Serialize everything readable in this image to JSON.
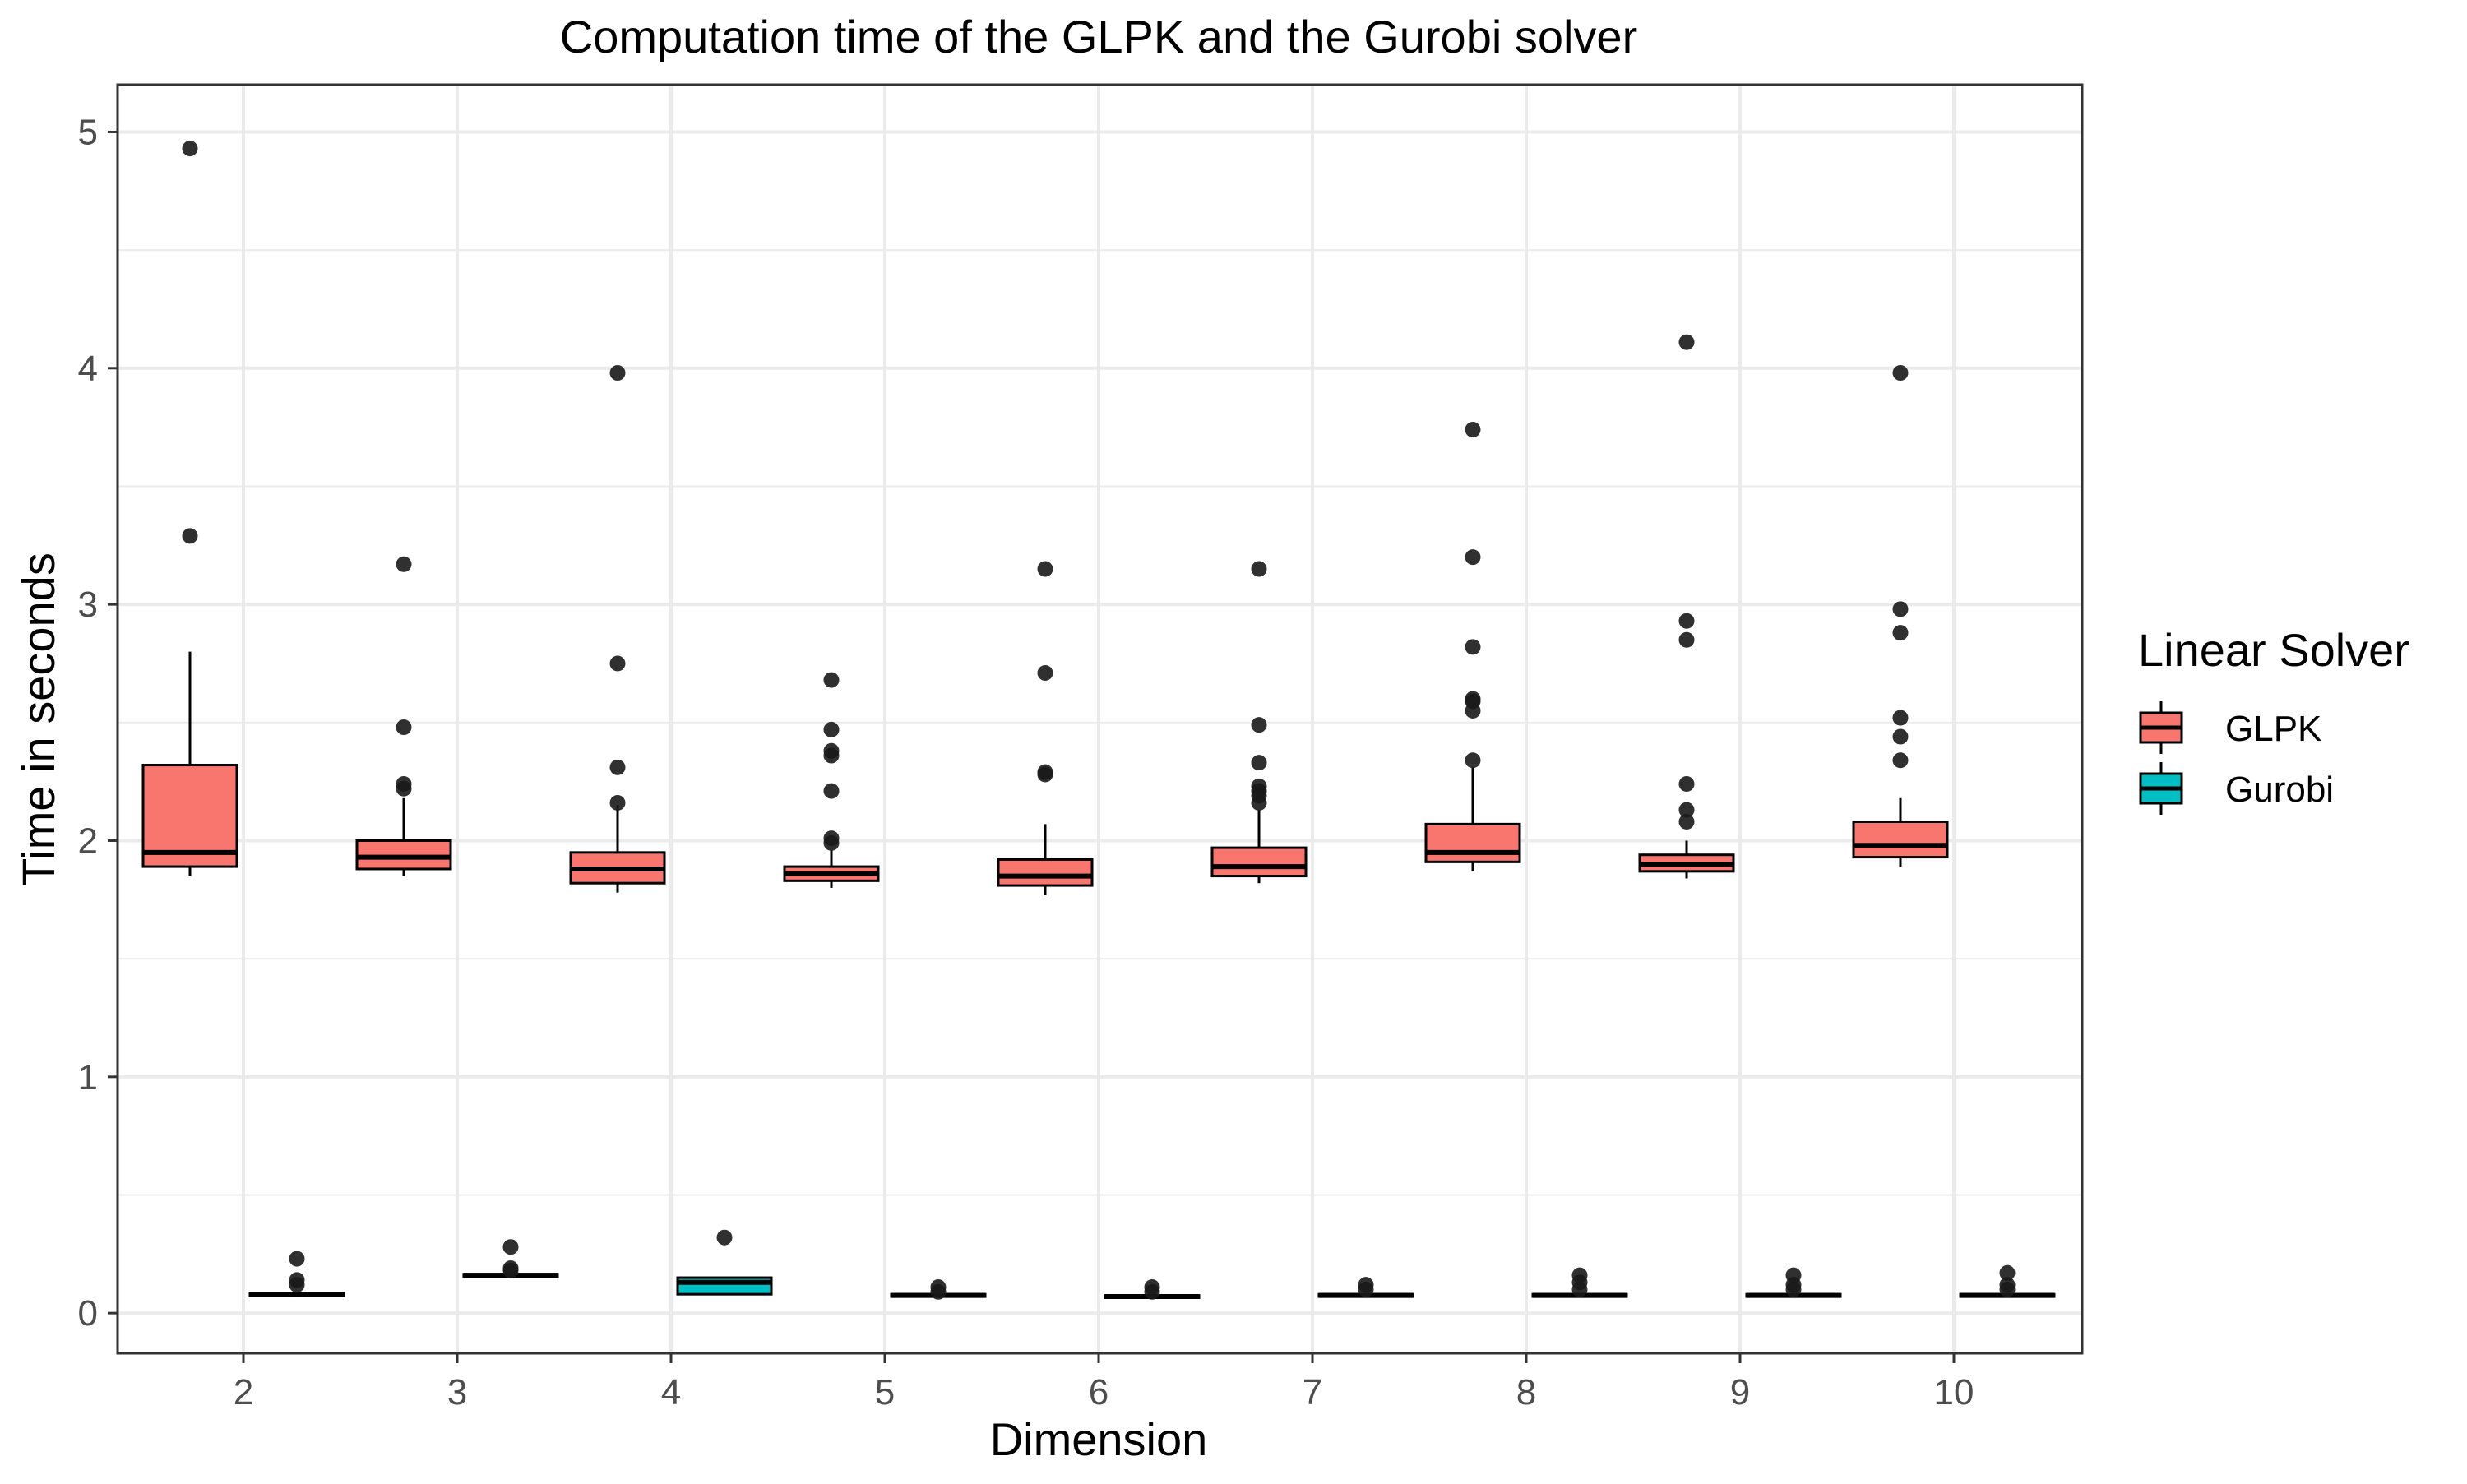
{
  "chart_data": {
    "type": "boxplot",
    "title": "Computation time of the GLPK and the Gurobi solver",
    "xlabel": "Dimension",
    "ylabel": "Time in seconds",
    "categories": [
      "2",
      "3",
      "4",
      "5",
      "6",
      "7",
      "8",
      "9",
      "10"
    ],
    "ylim": [
      -0.17,
      5.2
    ],
    "yticks": [
      0,
      1,
      2,
      3,
      4,
      5
    ],
    "grid": true,
    "legend": {
      "title": "Linear Solver",
      "position": "right",
      "entries": [
        "GLPK",
        "Gurobi"
      ]
    },
    "colors": {
      "GLPK": "#F8766D",
      "Gurobi": "#00BFC4",
      "grid": "#ebebeb",
      "outlier": "#1a1a1a"
    },
    "series": [
      {
        "name": "GLPK",
        "boxes": [
          {
            "whisker_low": 1.85,
            "q1": 1.89,
            "median": 1.95,
            "q3": 2.32,
            "whisker_high": 2.8,
            "outliers": [
              3.29,
              4.93
            ]
          },
          {
            "whisker_low": 1.85,
            "q1": 1.88,
            "median": 1.93,
            "q3": 2.0,
            "whisker_high": 2.18,
            "outliers": [
              2.22,
              2.24,
              2.48,
              3.17
            ]
          },
          {
            "whisker_low": 1.78,
            "q1": 1.82,
            "median": 1.88,
            "q3": 1.95,
            "whisker_high": 2.15,
            "outliers": [
              2.16,
              2.31,
              2.75,
              3.98
            ]
          },
          {
            "whisker_low": 1.8,
            "q1": 1.83,
            "median": 1.86,
            "q3": 1.89,
            "whisker_high": 1.96,
            "outliers": [
              1.99,
              2.01,
              2.21,
              2.36,
              2.38,
              2.47,
              2.68
            ]
          },
          {
            "whisker_low": 1.77,
            "q1": 1.81,
            "median": 1.85,
            "q3": 1.92,
            "whisker_high": 2.07,
            "outliers": [
              2.28,
              2.29,
              2.71,
              3.15
            ]
          },
          {
            "whisker_low": 1.82,
            "q1": 1.85,
            "median": 1.89,
            "q3": 1.97,
            "whisker_high": 2.13,
            "outliers": [
              2.16,
              2.19,
              2.21,
              2.23,
              2.33,
              2.49,
              3.15
            ]
          },
          {
            "whisker_low": 1.87,
            "q1": 1.91,
            "median": 1.95,
            "q3": 2.07,
            "whisker_high": 2.31,
            "outliers": [
              2.34,
              2.55,
              2.59,
              2.6,
              2.82,
              3.2,
              3.74
            ]
          },
          {
            "whisker_low": 1.84,
            "q1": 1.87,
            "median": 1.9,
            "q3": 1.94,
            "whisker_high": 2.0,
            "outliers": [
              2.08,
              2.13,
              2.24,
              2.85,
              2.93,
              4.11
            ]
          },
          {
            "whisker_low": 1.89,
            "q1": 1.93,
            "median": 1.98,
            "q3": 2.08,
            "whisker_high": 2.18,
            "outliers": [
              2.34,
              2.44,
              2.52,
              2.88,
              2.98,
              3.98
            ]
          }
        ]
      },
      {
        "name": "Gurobi",
        "boxes": [
          {
            "whisker_low": 0.07,
            "q1": 0.075,
            "median": 0.08,
            "q3": 0.085,
            "whisker_high": 0.09,
            "outliers": [
              0.12,
              0.14,
              0.23
            ]
          },
          {
            "whisker_low": 0.15,
            "q1": 0.155,
            "median": 0.16,
            "q3": 0.165,
            "whisker_high": 0.17,
            "outliers": [
              0.18,
              0.19,
              0.28
            ]
          },
          {
            "whisker_low": 0.08,
            "q1": 0.08,
            "median": 0.13,
            "q3": 0.15,
            "whisker_high": 0.15,
            "outliers": [
              0.32
            ]
          },
          {
            "whisker_low": 0.065,
            "q1": 0.07,
            "median": 0.075,
            "q3": 0.08,
            "whisker_high": 0.085,
            "outliers": [
              0.09,
              0.11
            ]
          },
          {
            "whisker_low": 0.06,
            "q1": 0.065,
            "median": 0.07,
            "q3": 0.075,
            "whisker_high": 0.08,
            "outliers": [
              0.09,
              0.11
            ]
          },
          {
            "whisker_low": 0.065,
            "q1": 0.07,
            "median": 0.075,
            "q3": 0.08,
            "whisker_high": 0.085,
            "outliers": [
              0.1,
              0.12
            ]
          },
          {
            "whisker_low": 0.065,
            "q1": 0.07,
            "median": 0.075,
            "q3": 0.08,
            "whisker_high": 0.085,
            "outliers": [
              0.1,
              0.13,
              0.16
            ]
          },
          {
            "whisker_low": 0.065,
            "q1": 0.07,
            "median": 0.075,
            "q3": 0.08,
            "whisker_high": 0.085,
            "outliers": [
              0.1,
              0.12,
              0.16
            ]
          },
          {
            "whisker_low": 0.065,
            "q1": 0.07,
            "median": 0.075,
            "q3": 0.08,
            "whisker_high": 0.085,
            "outliers": [
              0.1,
              0.12,
              0.17
            ]
          }
        ]
      }
    ]
  }
}
